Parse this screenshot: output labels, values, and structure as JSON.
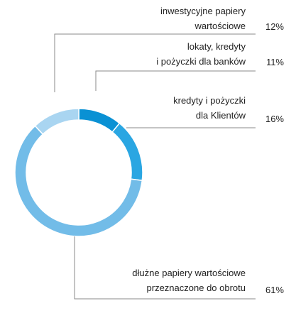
{
  "chart_data": {
    "type": "donut",
    "categories": [
      [
        "lokaty, kredyty",
        "i pożyczki dla banków"
      ],
      [
        "kredyty i pożyczki",
        "dla Klientów"
      ],
      [
        "dłużne papiery wartościowe",
        "przeznaczone do obrotu"
      ],
      [
        "inwestycyjne papiery",
        "wartościowe"
      ]
    ],
    "values": [
      11,
      16,
      61,
      12
    ],
    "value_labels": [
      "11%",
      "16%",
      "61%",
      "12%"
    ],
    "colors": [
      "#0a91d4",
      "#2aa6e2",
      "#72bce8",
      "#a9d5f1"
    ]
  }
}
